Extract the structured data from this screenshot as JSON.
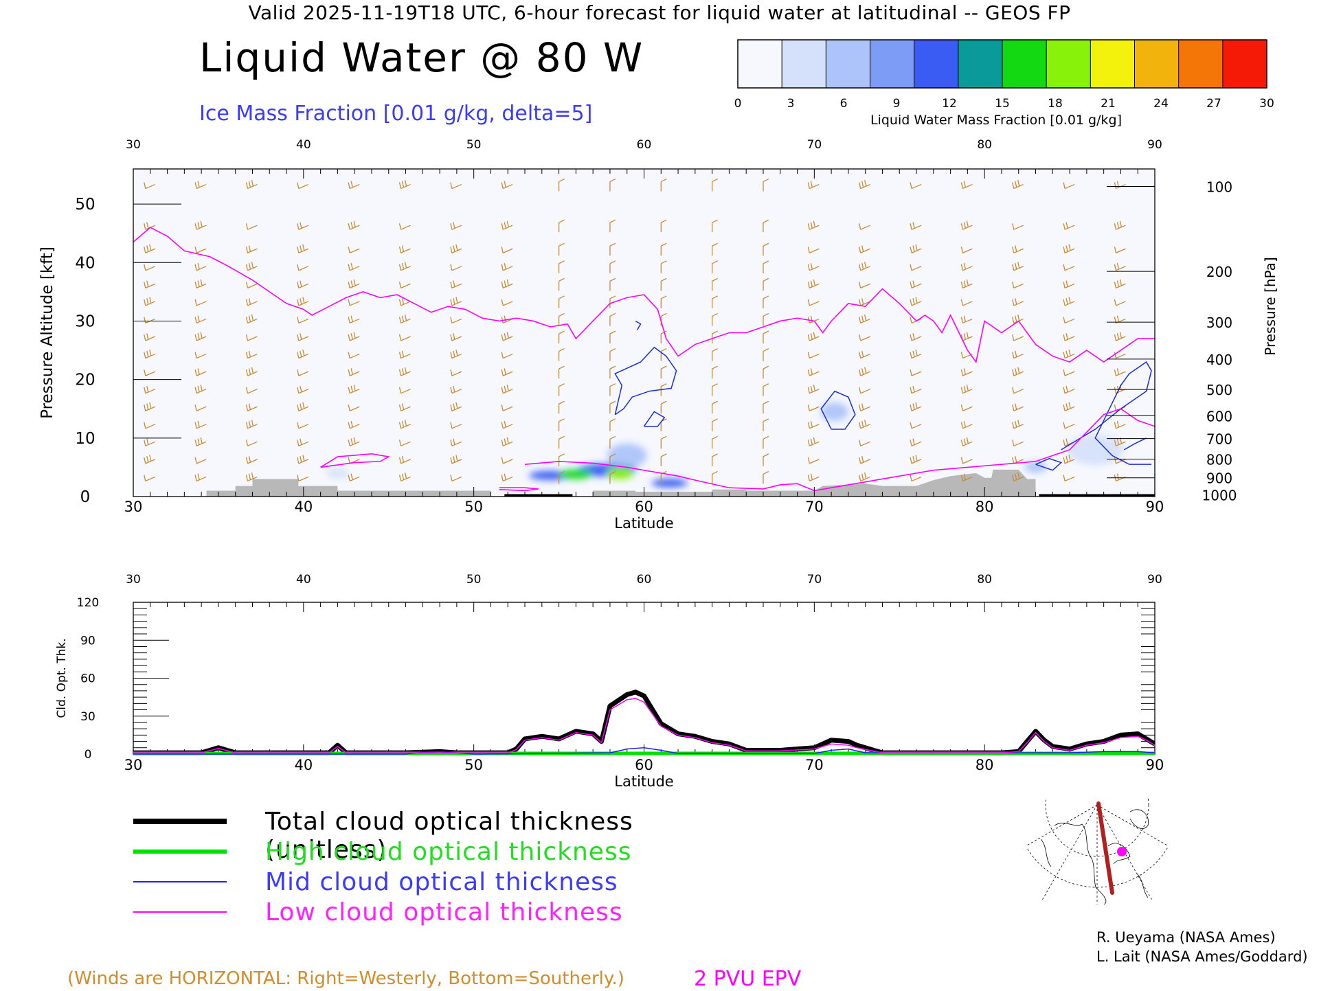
{
  "header": {
    "valid_line": "Valid 2025-11-19T18 UTC, 6-hour forecast for liquid water at latitudinal -- GEOS FP",
    "title": "Liquid Water @ 80 W",
    "subtitle": "Ice Mass Fraction [0.01 g/kg, delta=5]"
  },
  "colorbar": {
    "label": "Liquid Water Mass Fraction [0.01 g/kg]",
    "ticks": [
      "0",
      "3",
      "6",
      "9",
      "12",
      "15",
      "18",
      "21",
      "24",
      "27",
      "30"
    ],
    "colors": [
      "#f6f8fe",
      "#d5e0fb",
      "#adc4fa",
      "#7d9cf6",
      "#3a5cf2",
      "#0a9a9a",
      "#13d913",
      "#88f20b",
      "#f2f20d",
      "#f2b30c",
      "#f47606",
      "#f41a06"
    ]
  },
  "chart_data": [
    {
      "type": "heatmap",
      "title": "Liquid Water @ 80 W",
      "xlabel": "Latitude",
      "ylabel": "Pressure Altitude [kft]",
      "y2label": "Pressure [hPa]",
      "xlim": [
        30,
        90
      ],
      "ylim": [
        0,
        56
      ],
      "x_ticks": [
        "30",
        "40",
        "50",
        "60",
        "70",
        "80",
        "90"
      ],
      "y_ticks": [
        "0",
        "10",
        "20",
        "30",
        "40",
        "50"
      ],
      "pressure_ticks": [
        {
          "label": "100",
          "kft": 53.0
        },
        {
          "label": "200",
          "kft": 38.5
        },
        {
          "label": "300",
          "kft": 29.8
        },
        {
          "label": "400",
          "kft": 23.5
        },
        {
          "label": "500",
          "kft": 18.3
        },
        {
          "label": "600",
          "kft": 13.8
        },
        {
          "label": "700",
          "kft": 9.9
        },
        {
          "label": "800",
          "kft": 6.4
        },
        {
          "label": "900",
          "kft": 3.2
        },
        {
          "label": "1000",
          "kft": 0.3
        }
      ],
      "liquid_water_blobs": [
        {
          "lat": 56.0,
          "kft": 3.8,
          "w": 1.6,
          "h": 1.0,
          "value": 16
        },
        {
          "lat": 58.6,
          "kft": 4.0,
          "w": 1.3,
          "h": 1.4,
          "value": 18
        },
        {
          "lat": 57.8,
          "kft": 4.5,
          "w": 3.2,
          "h": 1.5,
          "value": 11
        },
        {
          "lat": 54.5,
          "kft": 3.6,
          "w": 2.2,
          "h": 0.9,
          "value": 9
        },
        {
          "lat": 61.5,
          "kft": 2.3,
          "w": 1.8,
          "h": 0.8,
          "value": 11
        },
        {
          "lat": 59.0,
          "kft": 7.0,
          "w": 2.0,
          "h": 3.5,
          "value": 3
        },
        {
          "lat": 71.2,
          "kft": 14.5,
          "w": 1.3,
          "h": 2.5,
          "value": 3
        },
        {
          "lat": 86.5,
          "kft": 8.0,
          "w": 3.0,
          "h": 4.5,
          "value": 2
        },
        {
          "lat": 83.0,
          "kft": 5.0,
          "w": 1.0,
          "h": 1.2,
          "value": 3
        },
        {
          "lat": 42.0,
          "kft": 4.0,
          "w": 1.0,
          "h": 1.0,
          "value": 2
        }
      ],
      "epv_2pvu_line": [
        [
          30,
          43.5
        ],
        [
          31,
          46
        ],
        [
          32,
          44.5
        ],
        [
          33,
          42
        ],
        [
          34.5,
          41
        ],
        [
          35.5,
          39.5
        ],
        [
          37,
          37
        ],
        [
          38,
          35
        ],
        [
          39,
          33
        ],
        [
          40,
          32
        ],
        [
          40.5,
          31
        ],
        [
          41.5,
          32.5
        ],
        [
          42.5,
          34
        ],
        [
          43.5,
          35
        ],
        [
          44.5,
          34
        ],
        [
          45.5,
          34.5
        ],
        [
          46.5,
          33
        ],
        [
          47.5,
          31.5
        ],
        [
          48.5,
          32.5
        ],
        [
          49.5,
          32
        ],
        [
          50.5,
          30.5
        ],
        [
          51.5,
          30
        ],
        [
          52.5,
          30.5
        ],
        [
          53.5,
          30
        ],
        [
          54.5,
          29
        ],
        [
          55.5,
          29.5
        ],
        [
          56,
          27
        ],
        [
          57,
          30
        ],
        [
          58,
          33
        ],
        [
          59,
          34
        ],
        [
          60,
          34.5
        ],
        [
          60.8,
          32
        ],
        [
          61.3,
          27
        ],
        [
          62,
          24
        ],
        [
          63,
          26
        ],
        [
          64,
          27
        ],
        [
          65,
          28
        ],
        [
          66,
          28
        ],
        [
          67,
          29
        ],
        [
          68,
          30
        ],
        [
          69,
          30.5
        ],
        [
          70,
          30
        ],
        [
          70.5,
          28
        ],
        [
          71,
          30
        ],
        [
          72,
          33
        ],
        [
          73,
          32.5
        ],
        [
          73.5,
          34
        ],
        [
          74,
          35.5
        ],
        [
          75,
          33
        ],
        [
          76,
          30
        ],
        [
          76.5,
          31
        ],
        [
          77,
          30
        ],
        [
          77.5,
          28
        ],
        [
          78,
          31
        ],
        [
          78.5,
          28
        ],
        [
          79,
          25
        ],
        [
          79.5,
          23
        ],
        [
          80,
          30
        ],
        [
          81,
          28
        ],
        [
          82,
          30
        ],
        [
          82.5,
          28
        ],
        [
          83,
          26
        ],
        [
          84,
          24
        ],
        [
          85,
          23
        ],
        [
          86,
          25
        ],
        [
          87,
          23
        ],
        [
          88,
          25
        ],
        [
          89,
          27
        ],
        [
          90,
          27
        ]
      ],
      "low_epv_segments": [
        [
          [
            41,
            5
          ],
          [
            43,
            5.8
          ],
          [
            44.5,
            6
          ],
          [
            45,
            6.8
          ],
          [
            44,
            7.3
          ],
          [
            42,
            6.8
          ],
          [
            41,
            5
          ]
        ],
        [
          [
            51.5,
            1.5
          ],
          [
            53,
            1.5
          ],
          [
            53.8,
            1.3
          ],
          [
            53,
            1
          ],
          [
            51.5,
            1.2
          ]
        ],
        [
          [
            53,
            5.5
          ],
          [
            55,
            6
          ],
          [
            57,
            5.7
          ],
          [
            59,
            5
          ],
          [
            62,
            3.5
          ],
          [
            63,
            2.8
          ],
          [
            65,
            1.5
          ],
          [
            67,
            1.3
          ],
          [
            68,
            2
          ],
          [
            69,
            2.2
          ],
          [
            70,
            1
          ],
          [
            71,
            1.5
          ],
          [
            72,
            2
          ],
          [
            74,
            3
          ],
          [
            75,
            3.5
          ],
          [
            77,
            4.5
          ],
          [
            79,
            5
          ],
          [
            81,
            5.5
          ],
          [
            83,
            6
          ],
          [
            84,
            7
          ],
          [
            85,
            8
          ],
          [
            86,
            11
          ],
          [
            87,
            14
          ],
          [
            88,
            15
          ],
          [
            89,
            13
          ],
          [
            90,
            12
          ]
        ]
      ],
      "ice_contours": [
        [
          [
            59.5,
            30
          ],
          [
            59.8,
            29.5
          ],
          [
            59.6,
            28.5
          ]
        ],
        [
          [
            58.3,
            14
          ],
          [
            58.7,
            19
          ],
          [
            58.3,
            21
          ],
          [
            59.8,
            23
          ],
          [
            60.6,
            25.5
          ],
          [
            61.3,
            24
          ],
          [
            61.9,
            21.5
          ],
          [
            61.6,
            18.5
          ],
          [
            60.3,
            18
          ],
          [
            59.3,
            17
          ],
          [
            58.8,
            15
          ],
          [
            58.3,
            14
          ]
        ],
        [
          [
            60,
            12
          ],
          [
            60.6,
            14.5
          ],
          [
            61.2,
            13.5
          ],
          [
            60.8,
            12
          ],
          [
            60,
            12
          ]
        ],
        [
          [
            71,
            11.5
          ],
          [
            70.4,
            15
          ],
          [
            71.2,
            18
          ],
          [
            72,
            17
          ],
          [
            72.4,
            14
          ],
          [
            71.8,
            11.5
          ],
          [
            71,
            11.5
          ]
        ],
        [
          [
            84.5,
            8
          ],
          [
            86.5,
            11.5
          ],
          [
            88,
            15
          ],
          [
            89.5,
            18
          ],
          [
            89.8,
            21.5
          ],
          [
            89.5,
            23
          ],
          [
            88.5,
            21
          ],
          [
            88,
            19
          ],
          [
            87.5,
            16
          ],
          [
            87,
            13
          ],
          [
            86.5,
            10
          ],
          [
            87.5,
            7
          ],
          [
            88.5,
            5.5
          ],
          [
            89.8,
            5.5
          ]
        ],
        [
          [
            89.5,
            10
          ],
          [
            88.8,
            9
          ],
          [
            88.2,
            8
          ]
        ],
        [
          [
            83,
            5.5
          ],
          [
            83.8,
            6.5
          ],
          [
            84.5,
            5.8
          ],
          [
            84,
            4.5
          ],
          [
            83,
            5.5
          ]
        ]
      ],
      "terrain": [
        [
          34.3,
          1
        ],
        [
          36,
          1
        ],
        [
          36,
          1.8
        ],
        [
          37,
          1.8
        ],
        [
          37,
          3
        ],
        [
          39.7,
          3
        ],
        [
          39.7,
          1.8
        ],
        [
          42,
          1.8
        ],
        [
          42,
          1
        ],
        [
          51,
          1
        ],
        [
          51,
          0
        ],
        [
          57,
          0
        ],
        [
          57,
          1
        ],
        [
          59.5,
          1
        ],
        [
          59.5,
          0.8
        ],
        [
          64,
          0.8
        ],
        [
          64,
          1.2
        ],
        [
          66,
          1.2
        ],
        [
          66,
          1
        ],
        [
          70,
          1
        ],
        [
          70.5,
          1.8
        ],
        [
          73,
          2.2
        ],
        [
          74,
          1.8
        ],
        [
          76,
          1.8
        ],
        [
          77,
          2.8
        ],
        [
          78,
          3.5
        ],
        [
          79.5,
          4
        ],
        [
          80,
          3.2
        ],
        [
          80.4,
          3.2
        ],
        [
          80.5,
          4.6
        ],
        [
          82,
          4.6
        ],
        [
          82.5,
          3
        ],
        [
          83,
          3
        ]
      ]
    },
    {
      "type": "line",
      "xlabel": "Latitude",
      "ylabel": "Cld. Opt. Thk.",
      "xlim": [
        30,
        90
      ],
      "ylim": [
        0,
        120
      ],
      "x_ticks": [
        "30",
        "40",
        "50",
        "60",
        "70",
        "80",
        "90"
      ],
      "y_ticks": [
        "0",
        "30",
        "60",
        "90",
        "120"
      ],
      "series": [
        {
          "name": "Total cloud optical thickness (unitless)",
          "color": "#000000",
          "x": [
            30,
            34,
            35,
            36,
            40,
            41.5,
            42,
            42.5,
            46,
            48,
            49,
            50,
            52,
            52.5,
            53,
            54,
            55,
            56,
            57,
            57.5,
            58,
            59,
            59.5,
            60,
            61,
            62,
            63,
            64,
            65,
            66,
            68,
            70,
            71,
            72,
            72.5,
            74,
            76,
            78,
            80,
            81,
            82,
            82.5,
            83,
            83.5,
            84,
            85,
            86,
            87,
            88,
            89,
            89.5,
            90
          ],
          "y": [
            1,
            1,
            5,
            1,
            1,
            1,
            7,
            1,
            1,
            2,
            1,
            1,
            1,
            4,
            12,
            14,
            12,
            18,
            16,
            10,
            38,
            47,
            49,
            46,
            24,
            16,
            14,
            10,
            8,
            3,
            3,
            5,
            11,
            10,
            7,
            1,
            1,
            1,
            1,
            1,
            2,
            10,
            18,
            11,
            6,
            4,
            8,
            10,
            15,
            16,
            12,
            8
          ]
        },
        {
          "name": "High cloud optical thickness",
          "color": "#00e000",
          "x": [
            30,
            90
          ],
          "y": [
            0,
            0
          ]
        },
        {
          "name": "Mid cloud optical thickness",
          "color": "#2020ff",
          "x": [
            30,
            46,
            47,
            48,
            49,
            50,
            58,
            59,
            60,
            61,
            62,
            70,
            71,
            72,
            73,
            85,
            87,
            89,
            90
          ],
          "y": [
            0,
            0,
            1.5,
            2,
            1,
            0,
            1,
            4,
            5,
            3,
            0.5,
            0.5,
            3,
            4,
            1,
            1,
            2,
            2,
            1
          ]
        },
        {
          "name": "Low cloud optical thickness",
          "color": "#ff00ff",
          "x": [
            30,
            34,
            35,
            36,
            40,
            41.5,
            42,
            42.5,
            46,
            48,
            49,
            50,
            52,
            52.5,
            53,
            54,
            55,
            56,
            57,
            57.5,
            58,
            59,
            59.5,
            60,
            61,
            62,
            63,
            64,
            65,
            66,
            68,
            70,
            71,
            72,
            72.5,
            74,
            76,
            78,
            80,
            81,
            82,
            82.5,
            83,
            83.5,
            84,
            85,
            86,
            87,
            88,
            89,
            89.5,
            90
          ],
          "y": [
            1,
            1,
            4.5,
            1,
            1,
            1,
            6,
            1,
            1,
            1,
            1,
            1,
            1,
            3.5,
            11,
            13,
            11,
            17,
            15,
            9,
            35,
            43,
            44,
            41,
            22,
            15,
            13,
            9,
            7,
            2.5,
            2.5,
            4,
            8,
            7,
            5,
            1,
            1,
            1,
            1,
            1,
            2,
            9,
            17,
            10,
            5,
            3,
            7,
            9,
            13,
            14,
            11,
            7
          ]
        }
      ]
    }
  ],
  "legend": [
    {
      "label": "Total cloud optical thickness (unitless)",
      "color": "#000000",
      "text_color": "#000000"
    },
    {
      "label": "High cloud optical thickness",
      "color": "#00e000",
      "text_color": "#22dd22"
    },
    {
      "label": "Mid cloud optical thickness",
      "color": "#2020ff",
      "text_color": "#3b3bff"
    },
    {
      "label": "Low cloud optical thickness",
      "color": "#ff00ff",
      "text_color": "#ff22ff"
    }
  ],
  "notes": {
    "winds": "(Winds are HORIZONTAL: Right=Westerly, Bottom=Southerly.)",
    "pvu": "2 PVU EPV"
  },
  "credits": [
    "R. Ueyama (NASA Ames)",
    "L. Lait (NASA Ames/Goddard)"
  ],
  "colors": {
    "wind_barb": "#c98a2e",
    "terrain": "#b8b8b8",
    "epv": "#ff00ff",
    "ice_contour": "#1a2cd6"
  }
}
